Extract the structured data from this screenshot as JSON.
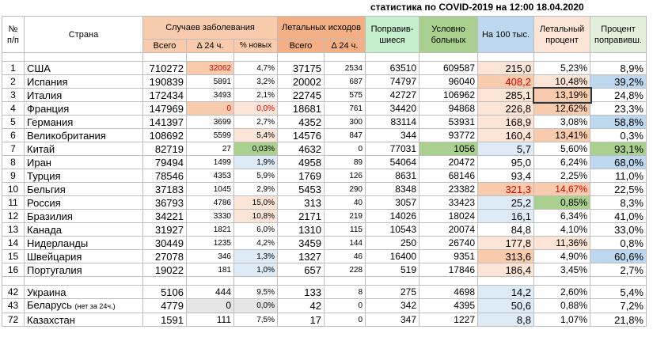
{
  "title": "статистика по COVID-2019 на 12:00 18.04.2020",
  "headers": {
    "num": "№ п/п",
    "country": "Страна",
    "cases": "Случаев заболевания",
    "deaths": "Летальных исходов",
    "recovered": "Поправив-шиеся",
    "active": "Условно больных",
    "per100k": "На 100 тыс.",
    "lethal_pct": "Летальный процент",
    "recovered_pct": "Процент поправивш.",
    "total": "Всего",
    "delta": "Δ 24 ч.",
    "new_pct": "% новых"
  },
  "rows": [
    {
      "n": "1",
      "country": "США",
      "cases": "710272",
      "d24": "32062",
      "newp": "4,7%",
      "deaths": "37175",
      "dd24": "2534",
      "rec": "63510",
      "active": "609587",
      "per": "215,0",
      "leth": "5,23%",
      "recp": "8,9%"
    },
    {
      "n": "2",
      "country": "Испания",
      "cases": "190839",
      "d24": "5891",
      "newp": "3,2%",
      "deaths": "20002",
      "dd24": "687",
      "rec": "74797",
      "active": "96040",
      "per": "408,2",
      "leth": "10,48%",
      "recp": "39,2%"
    },
    {
      "n": "3",
      "country": "Италия",
      "cases": "172434",
      "d24": "3493",
      "newp": "2,1%",
      "deaths": "22745",
      "dd24": "575",
      "rec": "42727",
      "active": "106962",
      "per": "285,1",
      "leth": "13,19%",
      "recp": "24,8%"
    },
    {
      "n": "4",
      "country": "Франция",
      "cases": "147969",
      "d24": "0",
      "newp": "0,0%",
      "deaths": "18681",
      "dd24": "761",
      "rec": "34420",
      "active": "94868",
      "per": "226,8",
      "leth": "12,62%",
      "recp": "23,3%"
    },
    {
      "n": "5",
      "country": "Германия",
      "cases": "141397",
      "d24": "3699",
      "newp": "2,7%",
      "deaths": "4352",
      "dd24": "300",
      "rec": "83114",
      "active": "53931",
      "per": "168,9",
      "leth": "3,08%",
      "recp": "58,8%"
    },
    {
      "n": "6",
      "country": "Великобритания",
      "cases": "108692",
      "d24": "5599",
      "newp": "5,4%",
      "deaths": "14576",
      "dd24": "847",
      "rec": "344",
      "active": "93772",
      "per": "160,4",
      "leth": "13,41%",
      "recp": "0,3%"
    },
    {
      "n": "7",
      "country": "Китай",
      "cases": "82719",
      "d24": "27",
      "newp": "0,03%",
      "deaths": "4632",
      "dd24": "0",
      "rec": "77031",
      "active": "1056",
      "per": "5,7",
      "leth": "5,60%",
      "recp": "93,1%"
    },
    {
      "n": "8",
      "country": "Иран",
      "cases": "79494",
      "d24": "1499",
      "newp": "1,9%",
      "deaths": "4958",
      "dd24": "89",
      "rec": "54064",
      "active": "20472",
      "per": "95,0",
      "leth": "6,24%",
      "recp": "68,0%"
    },
    {
      "n": "9",
      "country": "Турция",
      "cases": "78546",
      "d24": "4353",
      "newp": "5,9%",
      "deaths": "1769",
      "dd24": "126",
      "rec": "8631",
      "active": "68146",
      "per": "93,4",
      "leth": "2,25%",
      "recp": "11,0%"
    },
    {
      "n": "10",
      "country": "Бельгия",
      "cases": "37183",
      "d24": "1045",
      "newp": "2,9%",
      "deaths": "5453",
      "dd24": "290",
      "rec": "8348",
      "active": "23382",
      "per": "321,3",
      "leth": "14,67%",
      "recp": "22,5%"
    },
    {
      "n": "11",
      "country": "Россия",
      "cases": "36793",
      "d24": "4786",
      "newp": "15,0%",
      "deaths": "313",
      "dd24": "40",
      "rec": "3057",
      "active": "33423",
      "per": "25,2",
      "leth": "0,85%",
      "recp": "8,3%"
    },
    {
      "n": "12",
      "country": "Бразилия",
      "cases": "34221",
      "d24": "3330",
      "newp": "10,8%",
      "deaths": "2171",
      "dd24": "219",
      "rec": "14026",
      "active": "18024",
      "per": "16,1",
      "leth": "6,34%",
      "recp": "41,0%"
    },
    {
      "n": "13",
      "country": "Канада",
      "cases": "31927",
      "d24": "1821",
      "newp": "6,0%",
      "deaths": "1310",
      "dd24": "115",
      "rec": "10543",
      "active": "20074",
      "per": "84,8",
      "leth": "4,10%",
      "recp": "33,0%"
    },
    {
      "n": "14",
      "country": "Нидерланды",
      "cases": "30449",
      "d24": "1235",
      "newp": "4,2%",
      "deaths": "3459",
      "dd24": "144",
      "rec": "250",
      "active": "26740",
      "per": "177,8",
      "leth": "11,36%",
      "recp": "0,8%"
    },
    {
      "n": "15",
      "country": "Швейцария",
      "cases": "27078",
      "d24": "346",
      "newp": "1,3%",
      "deaths": "1327",
      "dd24": "46",
      "rec": "16400",
      "active": "9351",
      "per": "313,6",
      "leth": "4,90%",
      "recp": "60,6%"
    },
    {
      "n": "16",
      "country": "Португалия",
      "cases": "19022",
      "d24": "181",
      "newp": "1,0%",
      "deaths": "657",
      "dd24": "228",
      "rec": "519",
      "active": "17846",
      "per": "186,4",
      "leth": "3,45%",
      "recp": "2,7%"
    }
  ],
  "rows2": [
    {
      "n": "42",
      "country": "Украина",
      "note": "",
      "cases": "5106",
      "d24": "444",
      "newp": "9,5%",
      "deaths": "133",
      "dd24": "8",
      "rec": "275",
      "active": "4698",
      "per": "14,2",
      "leth": "2,60%",
      "recp": "5,4%"
    },
    {
      "n": "43",
      "country": "Беларусь",
      "note": "(нет за 24ч.)",
      "cases": "4779",
      "d24": "0",
      "newp": "0,0%",
      "deaths": "42",
      "dd24": "0",
      "rec": "342",
      "active": "4395",
      "per": "50,6",
      "leth": "0,88%",
      "recp": "7,2%"
    },
    {
      "n": "72",
      "country": "Казахстан",
      "note": "",
      "cases": "1591",
      "d24": "111",
      "newp": "7,5%",
      "deaths": "17",
      "dd24": "0",
      "rec": "347",
      "active": "1227",
      "per": "8,8",
      "leth": "1,07%",
      "recp": "21,8%"
    }
  ],
  "colors": {
    "header_cases": "#f8cbad",
    "header_deaths": "#f4b084",
    "header_recovered": "#c6efce",
    "header_active": "#a9d08e",
    "header_per": "#bdd7ee",
    "header_pct": "#fce4d6",
    "header_rec_pct": "#e2efda"
  }
}
